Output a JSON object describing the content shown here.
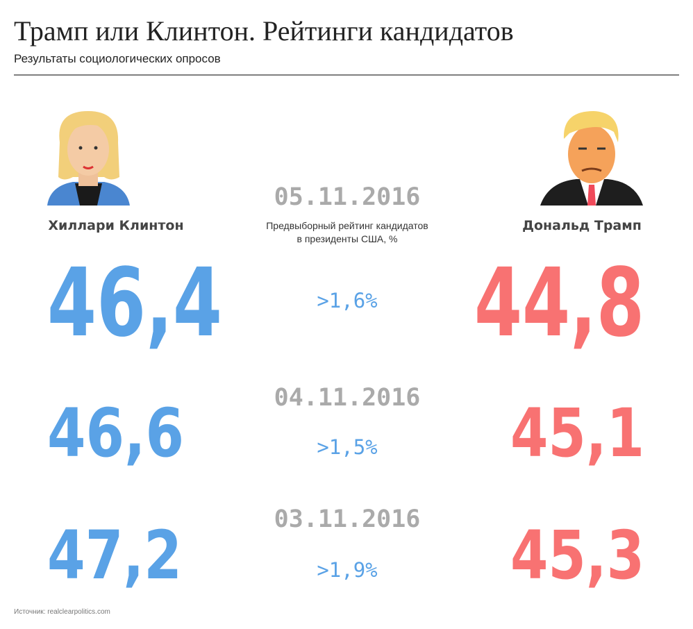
{
  "header": {
    "title": "Трамп или Клинтон. Рейтинги кандидатов",
    "subtitle": "Результаты социологических опросов"
  },
  "candidates": [
    {
      "name": "Хиллари Клинтон"
    },
    {
      "name": "Дональд Трамп"
    }
  ],
  "description": [
    "Предвыборный рейтинг кандидатов",
    "в президенты США, %"
  ],
  "rows": [
    {
      "date": "05.11.2016",
      "clinton": "46,4",
      "trump": "44,8",
      "lead": ">1,6%"
    },
    {
      "date": "04.11.2016",
      "clinton": "46,6",
      "trump": "45,1",
      "lead": ">1,5%"
    },
    {
      "date": "03.11.2016",
      "clinton": "47,2",
      "trump": "45,3",
      "lead": ">1,9%"
    }
  ],
  "source": "Источник: realclearpolitics.com"
}
